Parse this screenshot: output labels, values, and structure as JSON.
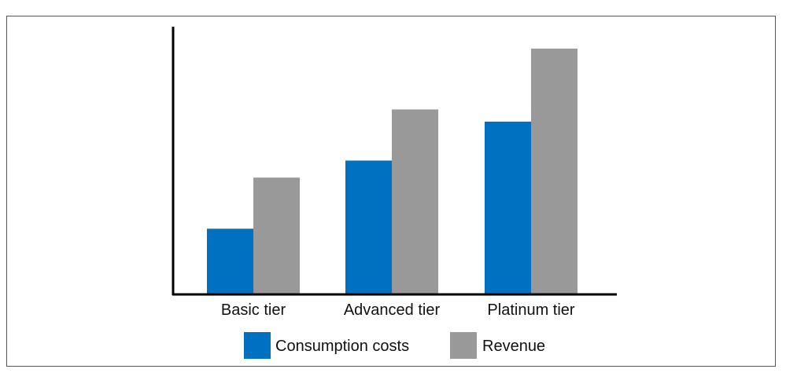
{
  "chart_data": {
    "type": "bar",
    "categories": [
      "Basic tier",
      "Advanced tier",
      "Platinum tier"
    ],
    "series": [
      {
        "name": "Consumption costs",
        "values": [
          27,
          55,
          71
        ],
        "color": "#0070C0"
      },
      {
        "name": "Revenue",
        "values": [
          48,
          76,
          101
        ],
        "color": "#999999"
      }
    ],
    "ylim": [
      0,
      110
    ],
    "grid": false,
    "legend": "bottom",
    "title": "",
    "xlabel": "",
    "ylabel": ""
  }
}
